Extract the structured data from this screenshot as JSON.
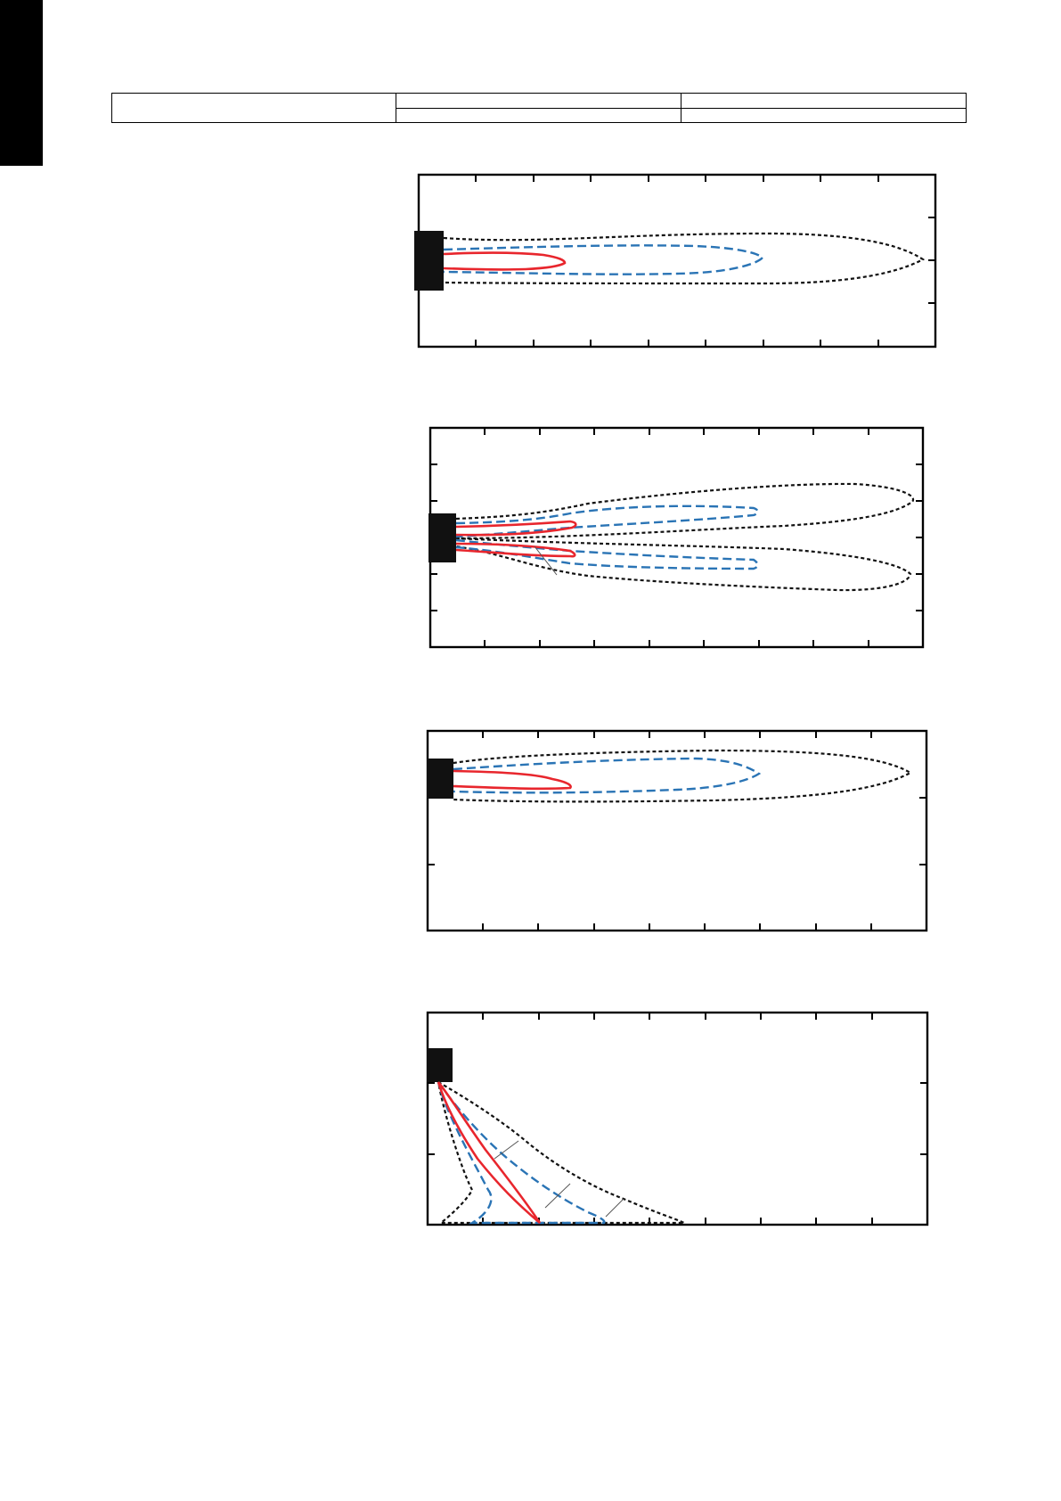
{
  "page": {
    "tab_color": "#000000"
  },
  "spec_table": {
    "rows": [
      {
        "label": "",
        "cells": [
          "",
          ""
        ]
      },
      {
        "label": "",
        "cells": [
          "",
          ""
        ]
      }
    ]
  },
  "colors": {
    "inner_contour": "#e8262d",
    "middle_contour": "#2a74b5",
    "outer_contour": "#111111",
    "unit": "#111111",
    "frame": "#000000",
    "leader_line": "#555555"
  },
  "legend": {
    "contours": [
      {
        "style": "solid",
        "color": "red"
      },
      {
        "style": "dashed",
        "color": "blue"
      },
      {
        "style": "dotted",
        "color": "black"
      }
    ]
  },
  "diagrams": [
    {
      "id": "panel-1",
      "icon": "air-discharge-straight-icon",
      "x_ticks": 9,
      "y_ticks": 3
    },
    {
      "id": "panel-2",
      "icon": "air-discharge-split-icon",
      "x_ticks": 9,
      "y_ticks": 4
    },
    {
      "id": "panel-3",
      "icon": "air-discharge-ceiling-icon",
      "x_ticks": 9,
      "y_ticks": 2
    },
    {
      "id": "panel-4",
      "icon": "air-discharge-downward-icon",
      "x_ticks": 9,
      "y_ticks": 2
    }
  ]
}
